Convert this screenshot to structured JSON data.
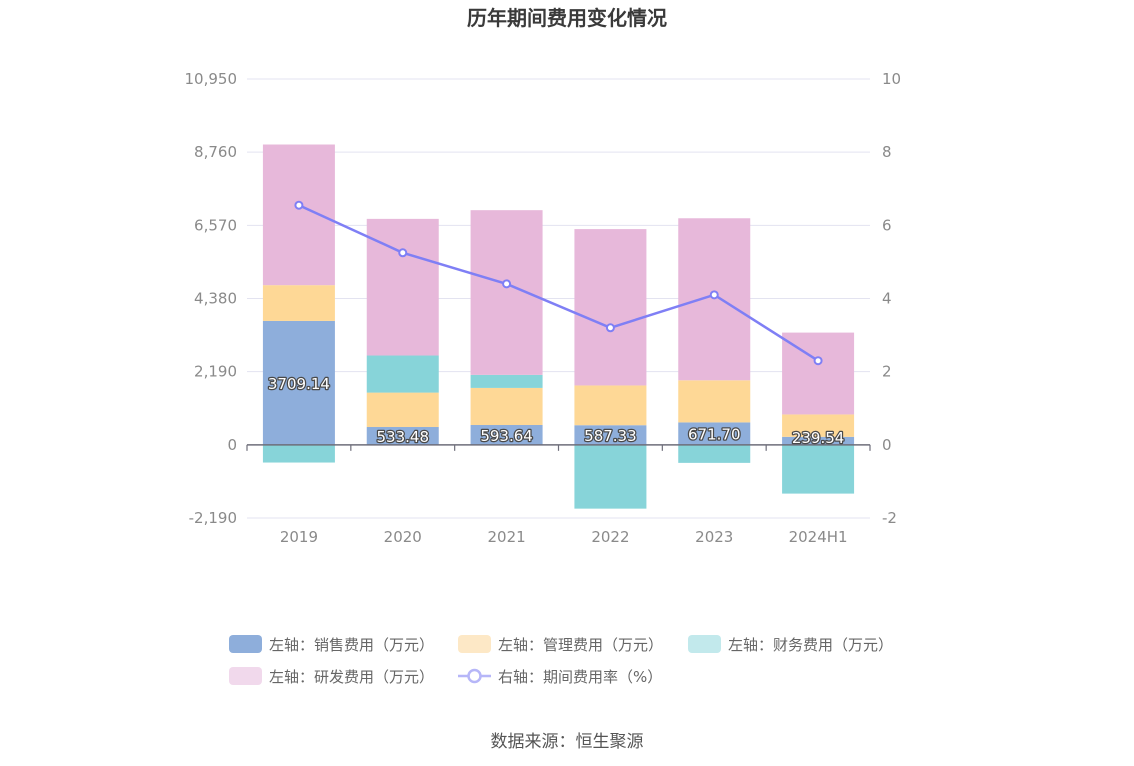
{
  "chart_data": {
    "type": "bar",
    "title": "历年期间费用变化情况",
    "categories": [
      "2019",
      "2020",
      "2021",
      "2022",
      "2023",
      "2024H1"
    ],
    "stacked": true,
    "left_axis": {
      "ticks": [
        "10,950",
        "8,760",
        "6,570",
        "4,380",
        "2,190",
        "0",
        "-2,190"
      ],
      "tick_values": [
        10950,
        8760,
        6570,
        4380,
        2190,
        0,
        -2190
      ],
      "ylim": [
        -2190,
        10950
      ]
    },
    "right_axis": {
      "ticks": [
        "10",
        "8",
        "6",
        "4",
        "2",
        "0",
        "-2"
      ],
      "tick_values": [
        10,
        8,
        6,
        4,
        2,
        0,
        -2
      ],
      "ylim": [
        -2,
        10
      ]
    },
    "series": [
      {
        "name": "左轴：销售费用（万元）",
        "axis": "left",
        "type": "bar",
        "color": "#8eaedb",
        "values": [
          3709.14,
          533.48,
          593.64,
          587.33,
          671.7,
          239.54
        ],
        "labels": [
          "3709.14",
          "533.48",
          "593.64",
          "587.33",
          "671.70",
          "239.54"
        ]
      },
      {
        "name": "左轴：管理费用（万元）",
        "axis": "left",
        "type": "bar",
        "color": "#fed896",
        "values": [
          1070,
          1030,
          1110,
          1190,
          1260,
          670
        ]
      },
      {
        "name": "左轴：财务费用（万元）",
        "axis": "left",
        "type": "bar",
        "color": "#87d4d9",
        "values": [
          -530,
          1110,
          390,
          -1910,
          -540,
          -1460
        ]
      },
      {
        "name": "左轴：研发费用（万元）",
        "axis": "left",
        "type": "bar",
        "color": "#e7b8da",
        "values": [
          4210,
          4090,
          4930,
          4680,
          4850,
          2450
        ]
      },
      {
        "name": "右轴：期间费用率（%）",
        "axis": "right",
        "type": "line",
        "color": "#7f7ff5",
        "values": [
          6.55,
          5.25,
          4.4,
          3.2,
          4.1,
          2.3
        ]
      }
    ],
    "legend": {
      "placement": "bottom",
      "items": [
        {
          "label": "左轴：销售费用（万元）",
          "color": "#8eaedb",
          "shape": "bar"
        },
        {
          "label": "左轴：管理费用（万元）",
          "color": "#fde8c6",
          "shape": "bar"
        },
        {
          "label": "左轴：财务费用（万元）",
          "color": "#c2e9ec",
          "shape": "bar"
        },
        {
          "label": "左轴：研发费用（万元）",
          "color": "#f1d9ec",
          "shape": "bar"
        },
        {
          "label": "右轴：期间费用率（%）",
          "color": "#b6b6f8",
          "shape": "line"
        }
      ]
    },
    "grid": true,
    "source": "数据来源：恒生聚源"
  }
}
